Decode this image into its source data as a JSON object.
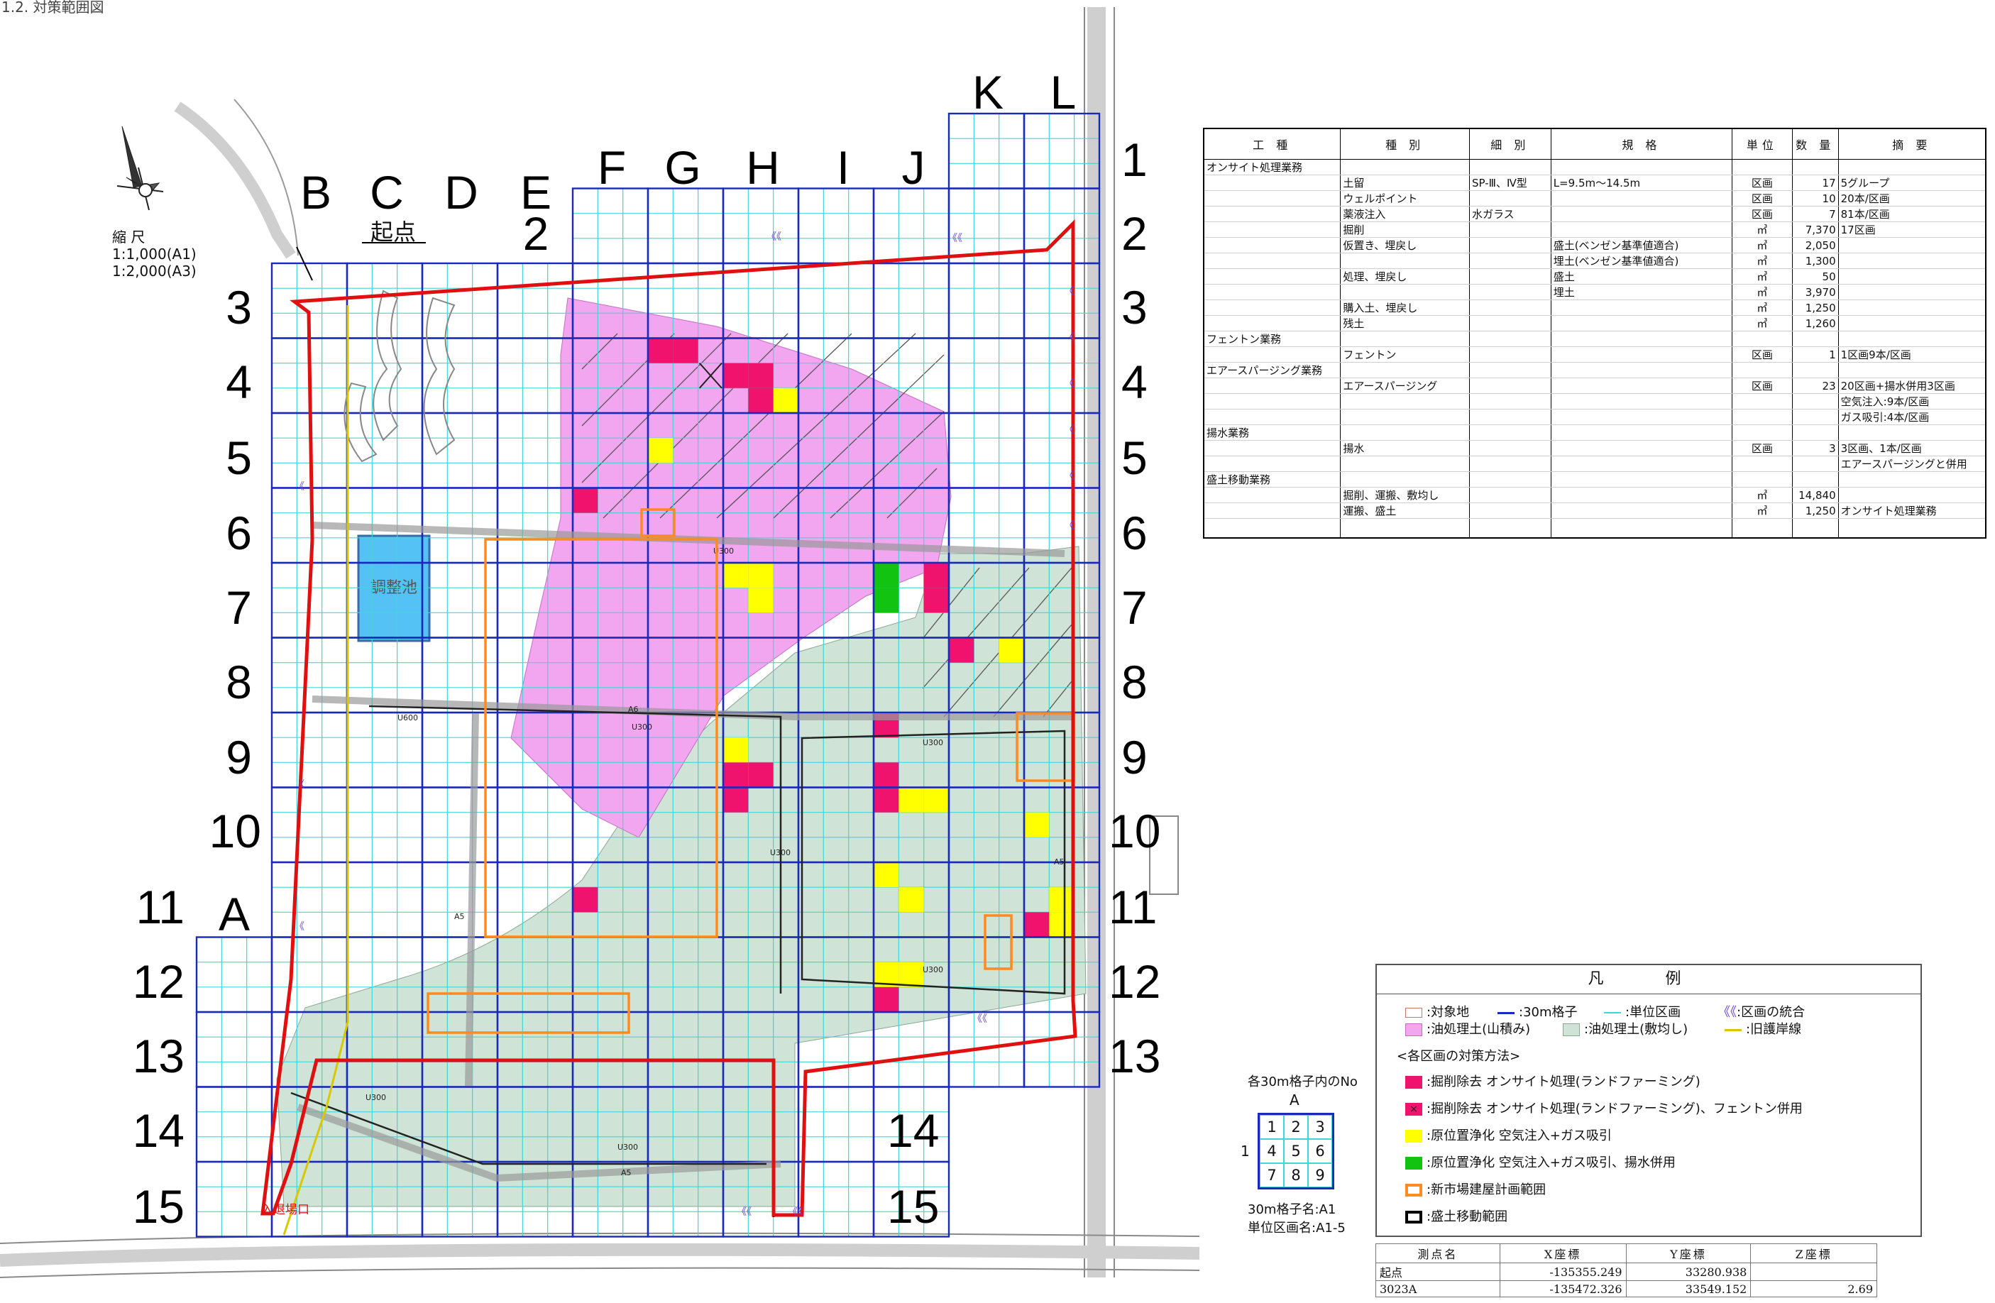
{
  "figure_caption": "1.2. 対策範囲図",
  "north_label": "",
  "scale": {
    "label": "縮 尺",
    "a1": "1:1,000(A1)",
    "a3": "1:2,000(A3)"
  },
  "start_point_label": "起点",
  "exit_label": "入退場口",
  "pond_label": "調整池",
  "pipe_labels": [
    "U300",
    "U600",
    "U300",
    "A6",
    "U300",
    "U300",
    "U300",
    "U250",
    "U300",
    "A5",
    "U300",
    "U300",
    "U300",
    "A5",
    "U300",
    "A5"
  ],
  "column_labels": [
    "A",
    "B",
    "C",
    "D",
    "E",
    "F",
    "G",
    "H",
    "I",
    "J",
    "K",
    "L"
  ],
  "row_labels": [
    "1",
    "2",
    "3",
    "4",
    "5",
    "6",
    "7",
    "8",
    "9",
    "10",
    "11",
    "12",
    "13",
    "14",
    "15"
  ],
  "extra_label_2": "2",
  "colors": {
    "grid_blue": "#1a2ab8",
    "unit_cyan": "#40d6d6",
    "boundary_red": "#e01010",
    "oil_mound": "#f2a6f0",
    "oil_spread": "#cfe3d6",
    "excavation": "#f0136e",
    "insitu": "#ffff00",
    "insitu_pump": "#12c312",
    "new_building": "#ff8a1f",
    "pond": "#55c2f5",
    "shoreline": "#d8c800",
    "road": "#c9c9c9"
  },
  "work_table": {
    "headers": [
      "工 種",
      "種 別",
      "細 別",
      "規 格",
      "単位",
      "数 量",
      "摘 要"
    ],
    "rows": [
      [
        "オンサイト処理業務",
        "",
        "",
        "",
        "",
        "",
        ""
      ],
      [
        "",
        "土留",
        "SP-Ⅲ、Ⅳ型",
        "L=9.5m～14.5m",
        "区画",
        "17",
        "5グループ"
      ],
      [
        "",
        "ウェルポイント",
        "",
        "",
        "区画",
        "10",
        "20本/区画"
      ],
      [
        "",
        "薬液注入",
        "水ガラス",
        "",
        "区画",
        "7",
        "81本/区画"
      ],
      [
        "",
        "掘削",
        "",
        "",
        "㎥",
        "7,370",
        "17区画"
      ],
      [
        "",
        "仮置き、埋戻し",
        "",
        "盛土(ベンゼン基準値適合)",
        "㎥",
        "2,050",
        ""
      ],
      [
        "",
        "",
        "",
        "埋土(ベンゼン基準値適合)",
        "㎥",
        "1,300",
        ""
      ],
      [
        "",
        "処理、埋戻し",
        "",
        "盛土",
        "㎥",
        "50",
        ""
      ],
      [
        "",
        "",
        "",
        "埋土",
        "㎥",
        "3,970",
        ""
      ],
      [
        "",
        "購入土、埋戻し",
        "",
        "",
        "㎥",
        "1,250",
        ""
      ],
      [
        "",
        "残土",
        "",
        "",
        "㎥",
        "1,260",
        ""
      ],
      [
        "フェントン業務",
        "",
        "",
        "",
        "",
        "",
        ""
      ],
      [
        "",
        "フェントン",
        "",
        "",
        "区画",
        "1",
        "1区画9本/区画"
      ],
      [
        "エアースパージング業務",
        "",
        "",
        "",
        "",
        "",
        ""
      ],
      [
        "",
        "エアースパージング",
        "",
        "",
        "区画",
        "23",
        "20区画+揚水併用3区画"
      ],
      [
        "",
        "",
        "",
        "",
        "",
        "",
        "空気注入:9本/区画"
      ],
      [
        "",
        "",
        "",
        "",
        "",
        "",
        "ガス吸引:4本/区画"
      ],
      [
        "揚水業務",
        "",
        "",
        "",
        "",
        "",
        ""
      ],
      [
        "",
        "揚水",
        "",
        "",
        "区画",
        "3",
        "3区画、1本/区画"
      ],
      [
        "",
        "",
        "",
        "",
        "",
        "",
        "エアースパージングと併用"
      ],
      [
        "盛土移動業務",
        "",
        "",
        "",
        "",
        "",
        ""
      ],
      [
        "",
        "掘削、運搬、敷均し",
        "",
        "",
        "㎥",
        "14,840",
        ""
      ],
      [
        "",
        "運搬、盛土",
        "",
        "",
        "㎥",
        "1,250",
        "オンサイト処理業務"
      ],
      [
        "",
        "",
        "",
        "",
        "",
        "",
        ""
      ]
    ]
  },
  "legend": {
    "title": "凡 例",
    "row1": [
      {
        "label": ":対象地",
        "swatch": "target"
      },
      {
        "label": ":30m格子",
        "swatch": "grid"
      },
      {
        "label": ":単位区画",
        "swatch": "unit"
      },
      {
        "label": ":区画の統合",
        "swatch": "merge"
      }
    ],
    "row2": [
      {
        "label": ":油処理土(山積み)",
        "swatch": "mound"
      },
      {
        "label": ":油処理土(敷均し)",
        "swatch": "spread"
      },
      {
        "label": ":旧護岸線",
        "swatch": "shore"
      }
    ],
    "method_title": "<各区画の対策方法>",
    "methods": [
      {
        "label": ":掘削除去 オンサイト処理(ランドファーミング)",
        "swatch": "exc"
      },
      {
        "label": ":掘削除去 オンサイト処理(ランドファーミング)、フェントン併用",
        "swatch": "excx"
      },
      {
        "label": ":原位置浄化 空気注入+ガス吸引",
        "swatch": "ins"
      },
      {
        "label": ":原位置浄化 空気注入+ガス吸引、揚水併用",
        "swatch": "insp"
      },
      {
        "label": ":新市場建屋計画範囲",
        "swatch": "bld"
      },
      {
        "label": ":盛土移動範囲",
        "swatch": "fill"
      }
    ]
  },
  "grid_key": {
    "title": "各30m格子内のNo",
    "col": "A",
    "row": "1",
    "numbers": [
      "1",
      "2",
      "3",
      "4",
      "5",
      "6",
      "7",
      "8",
      "9"
    ],
    "name_note": "30m格子名:A1",
    "unit_note": "単位区画名:A1-5"
  },
  "coord_table": {
    "headers": [
      "測点名",
      "X座標",
      "Y座標",
      "Z座標"
    ],
    "rows": [
      [
        "起点",
        "-135355.249",
        "33280.938",
        ""
      ],
      [
        "3023A",
        "-135472.326",
        "33549.152",
        "2.69"
      ]
    ]
  },
  "block_cells": {
    "excavation": [
      [
        "G",
        4,
        1
      ],
      [
        "G",
        4,
        2
      ],
      [
        "H",
        4,
        4
      ],
      [
        "H",
        4,
        5
      ],
      [
        "H",
        4,
        8
      ],
      [
        "F",
        6,
        1
      ],
      [
        "J",
        7,
        3
      ],
      [
        "J",
        7,
        6
      ],
      [
        "K",
        8,
        1
      ],
      [
        "H",
        9,
        7
      ],
      [
        "H",
        9,
        8
      ],
      [
        "J",
        9,
        1
      ],
      [
        "J",
        9,
        7
      ],
      [
        "J",
        10,
        1
      ],
      [
        "H",
        10,
        1
      ],
      [
        "F",
        11,
        4
      ],
      [
        "L",
        11,
        7
      ],
      [
        "J",
        12,
        7
      ]
    ],
    "insitu": [
      [
        "H",
        4,
        9
      ],
      [
        "G",
        5,
        4
      ],
      [
        "H",
        7,
        1
      ],
      [
        "H",
        7,
        2
      ],
      [
        "H",
        7,
        5
      ],
      [
        "K",
        8,
        3
      ],
      [
        "H",
        9,
        4
      ],
      [
        "H",
        9,
        7
      ],
      [
        "H",
        9,
        8
      ],
      [
        "J",
        10,
        2
      ],
      [
        "J",
        10,
        3
      ],
      [
        "L",
        10,
        4
      ],
      [
        "J",
        11,
        1
      ],
      [
        "J",
        11,
        5
      ],
      [
        "L",
        11,
        5
      ],
      [
        "L",
        11,
        8
      ],
      [
        "J",
        12,
        4
      ],
      [
        "J",
        12,
        5
      ]
    ],
    "insitu_pump": [
      [
        "J",
        7,
        1
      ],
      [
        "J",
        7,
        4
      ]
    ]
  }
}
